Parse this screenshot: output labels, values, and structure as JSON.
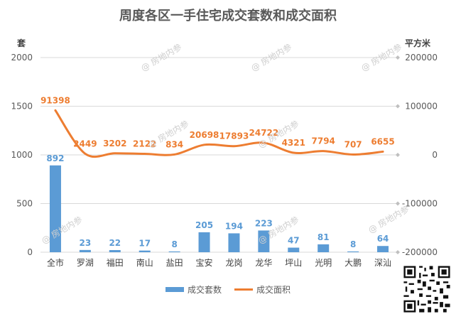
{
  "chart_data": {
    "type": "bar+line",
    "title": "周度各区一手住宅成交套数和成交面积",
    "categories": [
      "全市",
      "罗湖",
      "福田",
      "南山",
      "盐田",
      "宝安",
      "龙岗",
      "龙华",
      "坪山",
      "光明",
      "大鹏",
      "深汕"
    ],
    "series": [
      {
        "name": "成交套数",
        "type": "bar",
        "axis": "left",
        "color": "#5b9bd5",
        "values": [
          892,
          23,
          22,
          17,
          8,
          205,
          194,
          223,
          47,
          81,
          8,
          64
        ]
      },
      {
        "name": "成交面积",
        "type": "line",
        "axis": "right",
        "color": "#ed7d31",
        "values": [
          91398,
          2449,
          3202,
          2122,
          834,
          20698,
          17893,
          24722,
          4321,
          7794,
          707,
          6655
        ]
      }
    ],
    "left_axis": {
      "unit": "套",
      "min": 0,
      "max": 2000,
      "ticks": [
        0,
        500,
        1000,
        1500,
        2000
      ]
    },
    "right_axis": {
      "unit": "平方米",
      "min": -200000,
      "max": 200000,
      "ticks": [
        -200000,
        -100000,
        0,
        100000,
        200000
      ]
    },
    "grid": true,
    "legend_position": "bottom"
  },
  "watermark": "@ 房地内参",
  "qr_code": "qr-code-icon"
}
